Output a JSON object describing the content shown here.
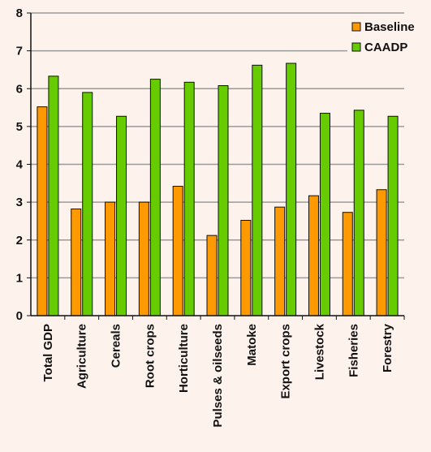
{
  "colors": {
    "background": "#fdf3ec",
    "gridline": "#9a9a9a",
    "axis": "#111111",
    "bar_outline": "#111111"
  },
  "chart_data": {
    "type": "bar",
    "title": "",
    "xlabel": "",
    "ylabel": "",
    "ylim": [
      0,
      8
    ],
    "yticks": [
      0,
      1,
      2,
      3,
      4,
      5,
      6,
      7,
      8
    ],
    "grid": true,
    "legend_position": "top-right",
    "categories": [
      "Total GDP",
      "Agriculture",
      "Cereals",
      "Root crops",
      "Horticulture",
      "Pulses & oilseeds",
      "Matoke",
      "Export crops",
      "Livestock",
      "Fisheries",
      "Forestry"
    ],
    "series": [
      {
        "name": "Baseline",
        "color": "#ff9900",
        "values": [
          5.52,
          2.82,
          3.0,
          3.0,
          3.42,
          2.12,
          2.52,
          2.87,
          3.17,
          2.73,
          3.33
        ]
      },
      {
        "name": "CAADP",
        "color": "#66cc00",
        "values": [
          6.33,
          5.9,
          5.27,
          6.25,
          6.17,
          6.08,
          6.62,
          6.67,
          5.35,
          5.43,
          5.27
        ]
      }
    ]
  }
}
